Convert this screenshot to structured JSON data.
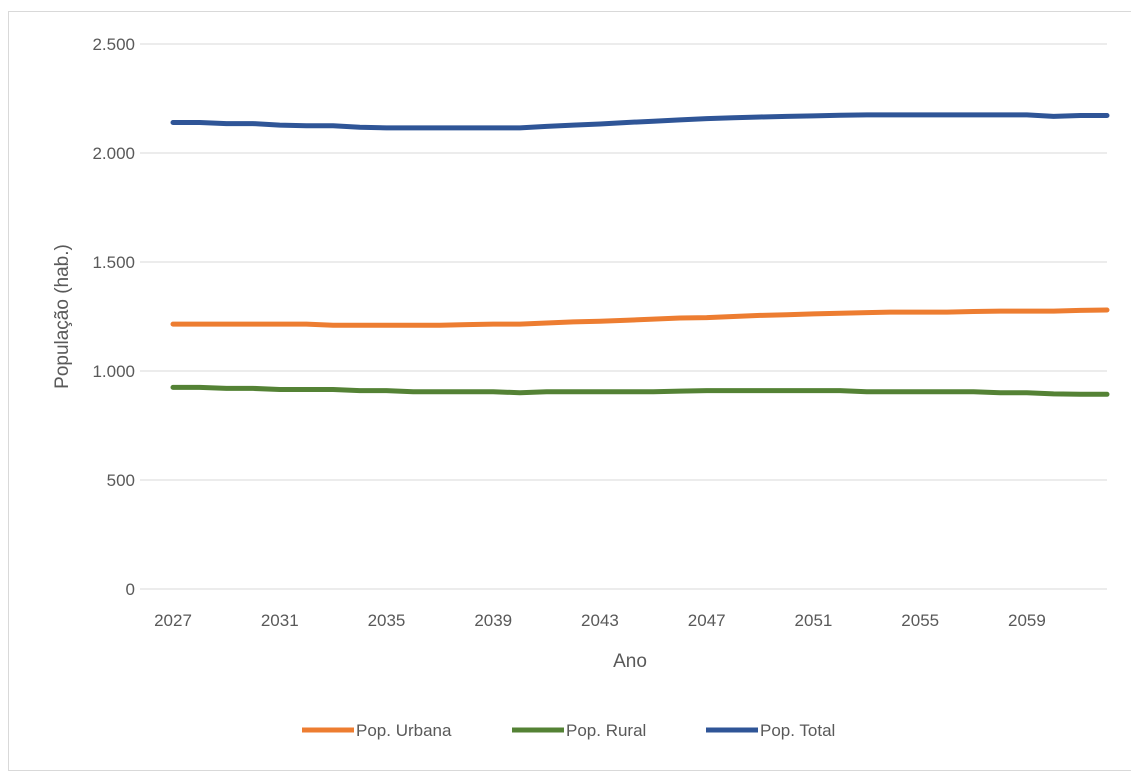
{
  "chart_data": {
    "type": "line",
    "title": "",
    "xlabel": "Ano",
    "ylabel": "População (hab.)",
    "x": [
      2027,
      2028,
      2029,
      2030,
      2031,
      2032,
      2033,
      2034,
      2035,
      2036,
      2037,
      2038,
      2039,
      2040,
      2041,
      2042,
      2043,
      2044,
      2045,
      2046,
      2047,
      2048,
      2049,
      2050,
      2051,
      2052,
      2053,
      2054,
      2055,
      2056,
      2057,
      2058,
      2059,
      2060,
      2061,
      2062
    ],
    "xticks": [
      "2027",
      "2031",
      "2035",
      "2039",
      "2043",
      "2047",
      "2051",
      "2055",
      "2059"
    ],
    "ylim": [
      0,
      2500
    ],
    "yticks": [
      {
        "value": 0,
        "label": "0"
      },
      {
        "value": 500,
        "label": "500"
      },
      {
        "value": 1000,
        "label": "1.000"
      },
      {
        "value": 1500,
        "label": "1.500"
      },
      {
        "value": 2000,
        "label": "2.000"
      },
      {
        "value": 2500,
        "label": "2.500"
      }
    ],
    "grid": true,
    "legend_position": "bottom",
    "series": [
      {
        "name": "Pop. Urbana",
        "color": "#ED7D31",
        "values": [
          1215,
          1215,
          1215,
          1215,
          1215,
          1215,
          1210,
          1210,
          1210,
          1210,
          1210,
          1213,
          1215,
          1215,
          1220,
          1225,
          1228,
          1233,
          1238,
          1243,
          1245,
          1250,
          1255,
          1258,
          1262,
          1265,
          1268,
          1270,
          1270,
          1270,
          1273,
          1275,
          1275,
          1275,
          1278,
          1280
        ]
      },
      {
        "name": "Pop. Rural",
        "color": "#548235",
        "values": [
          925,
          925,
          920,
          920,
          915,
          915,
          915,
          910,
          910,
          905,
          905,
          905,
          905,
          900,
          905,
          905,
          905,
          905,
          905,
          908,
          910,
          910,
          910,
          910,
          910,
          910,
          905,
          905,
          905,
          905,
          905,
          900,
          900,
          895,
          893,
          893
        ]
      },
      {
        "name": "Pop. Total",
        "color": "#2F5597",
        "values": [
          2140,
          2140,
          2135,
          2135,
          2128,
          2125,
          2125,
          2118,
          2115,
          2115,
          2115,
          2115,
          2115,
          2115,
          2122,
          2128,
          2133,
          2140,
          2146,
          2152,
          2158,
          2162,
          2165,
          2168,
          2170,
          2173,
          2175,
          2175,
          2175,
          2175,
          2175,
          2175,
          2175,
          2168,
          2172,
          2172
        ]
      }
    ]
  }
}
